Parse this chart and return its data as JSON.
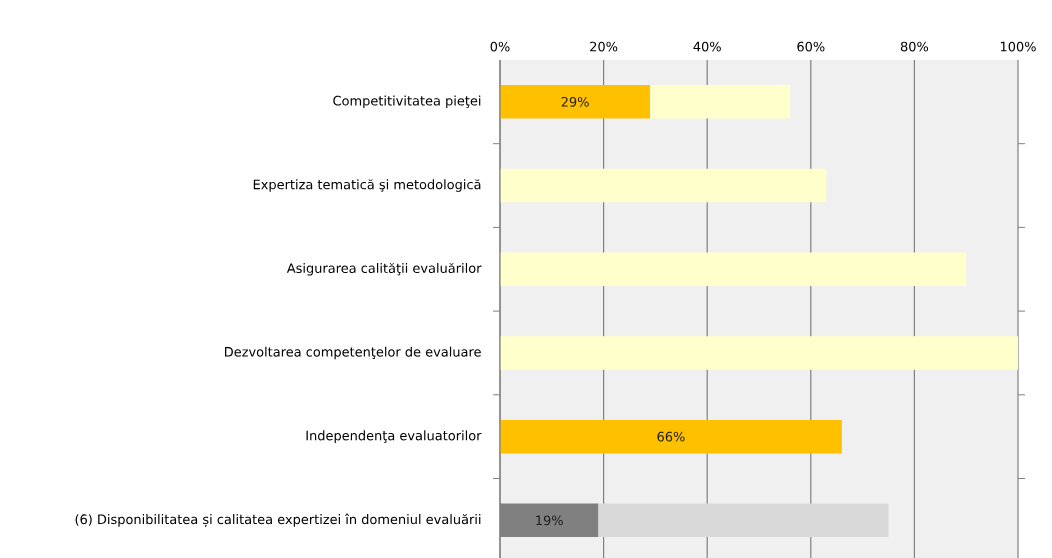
{
  "chart_data": {
    "type": "bar",
    "orientation": "horizontal",
    "stacked": true,
    "grid": "x",
    "categories": [
      "Competitivitatea pieţei",
      "Expertiza tematică şi metodologică",
      "Asigurarea calităţii evaluărilor",
      "Dezvoltarea competenţelor de evaluare",
      "Independenţa evaluatorilor",
      "(6) Disponibilitatea și calitatea expertizei în domeniul evaluării"
    ],
    "series": [
      {
        "values": [
          29,
          null,
          null,
          null,
          66,
          19
        ],
        "colors": [
          "#ffc000",
          null,
          null,
          null,
          "#ffc000",
          "#808080"
        ],
        "value_labels": [
          "29%",
          null,
          null,
          null,
          "66%",
          "19%"
        ]
      },
      {
        "values": [
          27,
          63,
          90,
          100,
          null,
          56
        ],
        "colors": [
          "#ffffcc",
          "#ffffcc",
          "#ffffcc",
          "#ffffcc",
          null,
          "#d9d9d9"
        ]
      }
    ],
    "xlim": [
      0,
      100
    ],
    "xticks": [
      {
        "value": 0,
        "label": "0%"
      },
      {
        "value": 20,
        "label": "20%"
      },
      {
        "value": 40,
        "label": "40%"
      },
      {
        "value": 60,
        "label": "60%"
      },
      {
        "value": 80,
        "label": "80%"
      },
      {
        "value": 100,
        "label": "100%"
      }
    ]
  }
}
